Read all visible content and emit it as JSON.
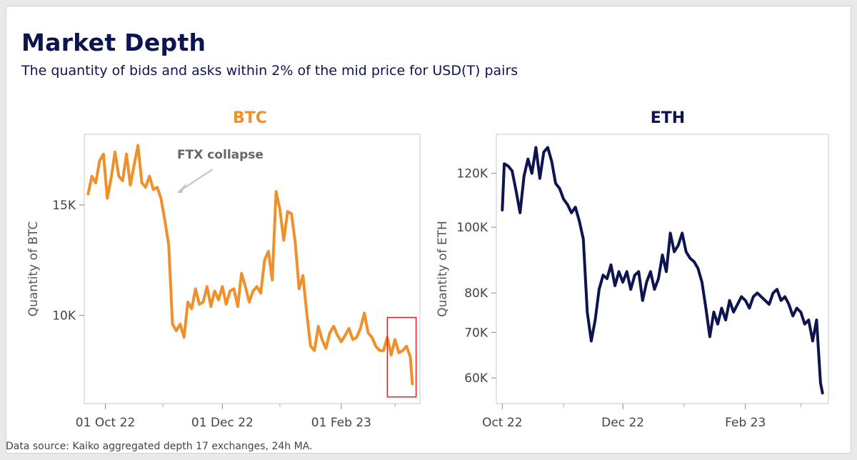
{
  "header": {
    "title": "Market Depth",
    "subtitle": "The quantity of bids and asks within 2% of the mid price for USD(T) pairs"
  },
  "footer": {
    "source": "Data source: Kaiko aggregated depth 17 exchanges, 24h MA."
  },
  "colors": {
    "btc_line": "#f0902a",
    "eth_line": "#0d1450",
    "highlight_box": "#e0202a",
    "annotation_arrow": "#c2c2c2"
  },
  "chart_data": [
    {
      "type": "line",
      "title": "BTC",
      "ylabel": "Quantity of BTC",
      "xlabel": "",
      "x_tick_labels": [
        "01 Oct 22",
        "01 Dec 22",
        "01 Feb 23"
      ],
      "y_tick_labels": [
        "10K",
        "15K"
      ],
      "y_ticks": [
        10000,
        15000
      ],
      "ylim": [
        6000,
        18200
      ],
      "xlim": [
        "2022-09-20",
        "2023-03-14"
      ],
      "grid": false,
      "annotations": [
        {
          "text": "FTX collapse",
          "arrow_to_date": "2022-11-08"
        }
      ],
      "highlight_box": {
        "from_date": "2023-02-25",
        "to_date": "2023-03-12",
        "from_value": 6300,
        "to_value": 9900
      },
      "series": [
        {
          "x": [
            "2022-09-22",
            "2022-09-24",
            "2022-09-26",
            "2022-09-28",
            "2022-09-30",
            "2022-10-02",
            "2022-10-04",
            "2022-10-06",
            "2022-10-08",
            "2022-10-10",
            "2022-10-12",
            "2022-10-14",
            "2022-10-16",
            "2022-10-18",
            "2022-10-20",
            "2022-10-22",
            "2022-10-24",
            "2022-10-26",
            "2022-10-28",
            "2022-10-30",
            "2022-11-01",
            "2022-11-03",
            "2022-11-05",
            "2022-11-07",
            "2022-11-09",
            "2022-11-11",
            "2022-11-13",
            "2022-11-15",
            "2022-11-17",
            "2022-11-19",
            "2022-11-21",
            "2022-11-23",
            "2022-11-25",
            "2022-11-27",
            "2022-11-29",
            "2022-12-01",
            "2022-12-03",
            "2022-12-05",
            "2022-12-07",
            "2022-12-09",
            "2022-12-11",
            "2022-12-13",
            "2022-12-15",
            "2022-12-17",
            "2022-12-19",
            "2022-12-21",
            "2022-12-23",
            "2022-12-25",
            "2022-12-27",
            "2022-12-29",
            "2022-12-31",
            "2023-01-02",
            "2023-01-04",
            "2023-01-06",
            "2023-01-08",
            "2023-01-10",
            "2023-01-12",
            "2023-01-14",
            "2023-01-16",
            "2023-01-18",
            "2023-01-20",
            "2023-01-22",
            "2023-01-24",
            "2023-01-26",
            "2023-01-28",
            "2023-01-30",
            "2023-02-01",
            "2023-02-03",
            "2023-02-05",
            "2023-02-07",
            "2023-02-09",
            "2023-02-11",
            "2023-02-13",
            "2023-02-15",
            "2023-02-17",
            "2023-02-19",
            "2023-02-21",
            "2023-02-23",
            "2023-02-25",
            "2023-02-27",
            "2023-03-01",
            "2023-03-03",
            "2023-03-05",
            "2023-03-07",
            "2023-03-09",
            "2023-03-10"
          ],
          "values": [
            15500,
            16300,
            16000,
            17000,
            17300,
            15300,
            16200,
            17400,
            16300,
            16100,
            17300,
            15900,
            16800,
            17700,
            16000,
            15800,
            16300,
            15700,
            15800,
            15300,
            14300,
            13200,
            9600,
            9300,
            9600,
            9000,
            10600,
            10300,
            11200,
            10500,
            10600,
            11300,
            10400,
            11100,
            10700,
            11300,
            10500,
            11100,
            11200,
            10400,
            11900,
            11300,
            10600,
            11100,
            11300,
            11000,
            12500,
            12900,
            11600,
            15600,
            14800,
            13400,
            14700,
            14600,
            13300,
            11200,
            11800,
            10100,
            8600,
            8400,
            9500,
            8900,
            8500,
            9200,
            9500,
            9100,
            8800,
            9100,
            9400,
            8900,
            9000,
            9400,
            10100,
            9200,
            9000,
            8600,
            8400,
            8400,
            9000,
            8200,
            8900,
            8300,
            8400,
            8600,
            8100,
            6900
          ]
        }
      ]
    },
    {
      "type": "line",
      "title": "ETH",
      "ylabel": "Quantity of ETH",
      "xlabel": "",
      "yscale": "log",
      "x_tick_labels": [
        "Oct 22",
        "Dec 22",
        "Feb 23"
      ],
      "y_tick_labels": [
        "60K",
        "70K",
        "80K",
        "100K",
        "120K"
      ],
      "y_ticks": [
        60000,
        70000,
        80000,
        100000,
        120000
      ],
      "ylim": [
        55000,
        137000
      ],
      "xlim": [
        "2022-09-28",
        "2023-03-15"
      ],
      "grid": false,
      "series": [
        {
          "x": [
            "2022-10-01",
            "2022-10-02",
            "2022-10-04",
            "2022-10-06",
            "2022-10-08",
            "2022-10-10",
            "2022-10-12",
            "2022-10-14",
            "2022-10-16",
            "2022-10-18",
            "2022-10-20",
            "2022-10-22",
            "2022-10-24",
            "2022-10-26",
            "2022-10-28",
            "2022-10-30",
            "2022-11-01",
            "2022-11-03",
            "2022-11-05",
            "2022-11-07",
            "2022-11-09",
            "2022-11-11",
            "2022-11-13",
            "2022-11-15",
            "2022-11-17",
            "2022-11-19",
            "2022-11-21",
            "2022-11-23",
            "2022-11-25",
            "2022-11-27",
            "2022-11-29",
            "2022-12-01",
            "2022-12-03",
            "2022-12-05",
            "2022-12-07",
            "2022-12-09",
            "2022-12-11",
            "2022-12-13",
            "2022-12-15",
            "2022-12-17",
            "2022-12-19",
            "2022-12-21",
            "2022-12-23",
            "2022-12-25",
            "2022-12-27",
            "2022-12-29",
            "2022-12-31",
            "2023-01-02",
            "2023-01-04",
            "2023-01-06",
            "2023-01-08",
            "2023-01-10",
            "2023-01-12",
            "2023-01-14",
            "2023-01-16",
            "2023-01-18",
            "2023-01-20",
            "2023-01-22",
            "2023-01-24",
            "2023-01-26",
            "2023-01-28",
            "2023-01-30",
            "2023-02-01",
            "2023-02-03",
            "2023-02-05",
            "2023-02-07",
            "2023-02-09",
            "2023-02-11",
            "2023-02-13",
            "2023-02-15",
            "2023-02-17",
            "2023-02-19",
            "2023-02-21",
            "2023-02-23",
            "2023-02-25",
            "2023-02-27",
            "2023-03-01",
            "2023-03-03",
            "2023-03-05",
            "2023-03-07",
            "2023-03-09",
            "2023-03-11",
            "2023-03-12"
          ],
          "values": [
            106000,
            124000,
            123000,
            121000,
            113000,
            105000,
            119000,
            126000,
            120000,
            131000,
            118000,
            129000,
            131000,
            125000,
            116000,
            114000,
            110000,
            108000,
            105000,
            107000,
            102000,
            96000,
            75000,
            68000,
            73000,
            81000,
            85000,
            84000,
            88000,
            82000,
            86000,
            83000,
            86000,
            81000,
            85000,
            86000,
            78000,
            83000,
            86000,
            81000,
            84000,
            91000,
            86000,
            98000,
            92000,
            94000,
            98000,
            92000,
            90000,
            89000,
            87000,
            83000,
            76000,
            69000,
            75000,
            72000,
            76000,
            73000,
            78000,
            75000,
            77000,
            79000,
            78000,
            76000,
            79000,
            80000,
            79000,
            78000,
            77000,
            80000,
            81000,
            78000,
            79000,
            77000,
            74000,
            76000,
            75000,
            72000,
            73000,
            68000,
            73000,
            59000,
            57000
          ]
        }
      ]
    }
  ]
}
